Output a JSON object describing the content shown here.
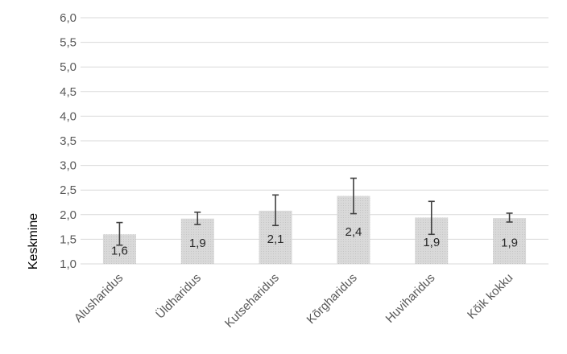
{
  "chart_data": {
    "type": "bar",
    "ylabel": "Keskmine",
    "ylim": [
      1.0,
      6.0
    ],
    "ytick_step": 0.5,
    "ytick_labels": [
      "1,0",
      "1,5",
      "2,0",
      "2,5",
      "3,0",
      "3,5",
      "4,0",
      "4,5",
      "5,0",
      "5,5",
      "6,0"
    ],
    "grid": true,
    "categories": [
      "Alusharidus",
      "Üldharidus",
      "Kutseharidus",
      "Kõrgharidus",
      "Huviharidus",
      "Kõik kokku"
    ],
    "values": [
      1.6,
      1.92,
      2.08,
      2.38,
      1.94,
      1.93
    ],
    "value_labels": [
      "1,6",
      "1,9",
      "2,1",
      "2,4",
      "1,9",
      "1,9"
    ],
    "error_low": [
      1.38,
      1.8,
      1.78,
      2.02,
      1.6,
      1.85
    ],
    "error_high": [
      1.84,
      2.05,
      2.4,
      2.74,
      2.27,
      2.03
    ],
    "colors": {
      "bar": "#d9d9d9",
      "bar_pattern": "#c4c4c4",
      "grid": "#d9d9d9",
      "error": "#404040"
    }
  }
}
